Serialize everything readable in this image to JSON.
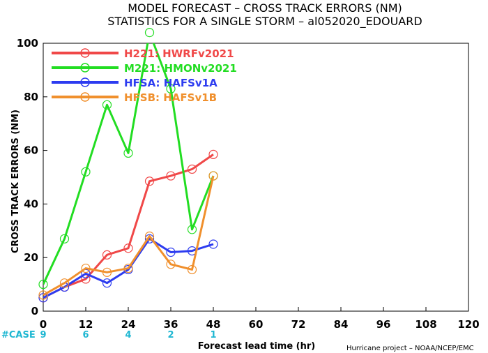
{
  "chart_data": {
    "type": "line",
    "title": "MODEL FORECAST – CROSS TRACK ERRORS (NM)",
    "subtitle": "STATISTICS FOR A SINGLE STORM – al052020_EDOUARD",
    "xlabel": "Forecast lead time (hr)",
    "ylabel": "CROSS TRACK ERRORS (NM)",
    "xlim": [
      0,
      120
    ],
    "ylim": [
      0,
      100
    ],
    "xticks": [
      0,
      12,
      24,
      36,
      48,
      60,
      72,
      84,
      96,
      108,
      120
    ],
    "yticks": [
      0,
      20,
      40,
      60,
      80,
      100
    ],
    "grid": false,
    "legend": "top-left",
    "series": [
      {
        "name": "H221: HWRFv2021",
        "color": "#f04848",
        "x": [
          0,
          6,
          12,
          18,
          24,
          30,
          36,
          42,
          48
        ],
        "y": [
          5,
          9,
          12,
          21,
          23.5,
          48.5,
          50.5,
          53,
          58.5
        ]
      },
      {
        "name": "M221: HMONv2021",
        "color": "#22dd22",
        "x": [
          0,
          6,
          12,
          18,
          24,
          30,
          36,
          42,
          48
        ],
        "y": [
          10,
          27,
          52,
          77,
          59,
          104,
          83,
          30.5,
          50.5
        ]
      },
      {
        "name": "HFSA: HAFSv1A",
        "color": "#2d3cf0",
        "x": [
          0,
          6,
          12,
          18,
          24,
          30,
          36,
          42,
          48
        ],
        "y": [
          5,
          9,
          14,
          10.5,
          15.5,
          27,
          22,
          22.5,
          25
        ]
      },
      {
        "name": "HFSB: HAFSv1B",
        "color": "#f0902d",
        "x": [
          0,
          6,
          12,
          18,
          24,
          30,
          36,
          42,
          48
        ],
        "y": [
          6,
          10.5,
          16,
          14.5,
          16,
          28,
          17.5,
          15.5,
          50.5
        ]
      }
    ],
    "cases": {
      "label": "#CASE",
      "color": "#1fb7d2",
      "x": [
        0,
        12,
        24,
        36,
        48
      ],
      "values": [
        "9",
        "6",
        "4",
        "2",
        "1"
      ]
    },
    "credit": "Hurricane project – NOAA/NCEP/EMC"
  }
}
